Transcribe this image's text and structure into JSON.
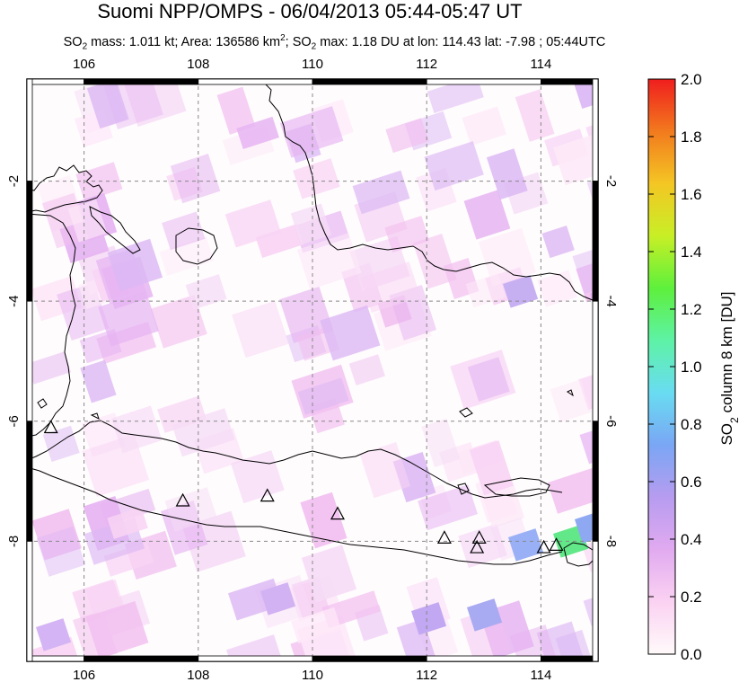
{
  "header": {
    "title": "Suomi NPP/OMPS - 06/04/2013 05:44-05:47 UT",
    "subtitle_parts": {
      "so2_prefix": "SO",
      "so2_sub": "2",
      "mass_text": " mass: 1.011 kt; Area: 136586 km",
      "km_sup": "2",
      "sep": "; SO",
      "so2_sub2": "2",
      "max_text": " max: 1.18 DU at lon: 114.43 lat: -7.98 ; 05:44UTC"
    }
  },
  "map": {
    "lon_range": [
      105.0,
      115.0
    ],
    "lat_range": [
      -10.0,
      -0.3
    ],
    "lon_ticks": [
      106,
      108,
      110,
      112,
      114
    ],
    "lon_tick_labels": [
      "106",
      "108",
      "110",
      "112",
      "114"
    ],
    "lat_ticks": [
      -2,
      -4,
      -6,
      -8
    ],
    "lat_tick_labels": [
      "-2",
      "-4",
      "-6",
      "-8"
    ],
    "grid": "dashed",
    "volcanoes": [
      {
        "lon": 105.42,
        "lat": -6.1
      },
      {
        "lon": 107.73,
        "lat": -7.32
      },
      {
        "lon": 109.21,
        "lat": -7.24
      },
      {
        "lon": 110.44,
        "lat": -7.54
      },
      {
        "lon": 112.31,
        "lat": -7.94
      },
      {
        "lon": 112.92,
        "lat": -7.94
      },
      {
        "lon": 112.88,
        "lat": -8.1
      },
      {
        "lon": 114.05,
        "lat": -8.1
      },
      {
        "lon": 114.27,
        "lat": -8.06
      }
    ],
    "colors": {
      "background": "#fffcfd",
      "grid": "#888888",
      "coast": "#000000"
    }
  },
  "colorbar": {
    "title_prefix": "SO",
    "title_sub": "2",
    "title_suffix": " column 8 km [DU]",
    "min": 0.0,
    "max": 2.0,
    "ticks": [
      "0.0",
      "0.2",
      "0.4",
      "0.6",
      "0.8",
      "1.0",
      "1.2",
      "1.4",
      "1.6",
      "1.8",
      "2.0"
    ],
    "stops": [
      "#fffafa",
      "#fbd2f2",
      "#e1aaf0",
      "#b79cf0",
      "#7aa6f4",
      "#69dcf2",
      "#5ef2a6",
      "#5ef03c",
      "#c8ef26",
      "#f4c624",
      "#f27a1e",
      "#f01e1e"
    ]
  }
}
